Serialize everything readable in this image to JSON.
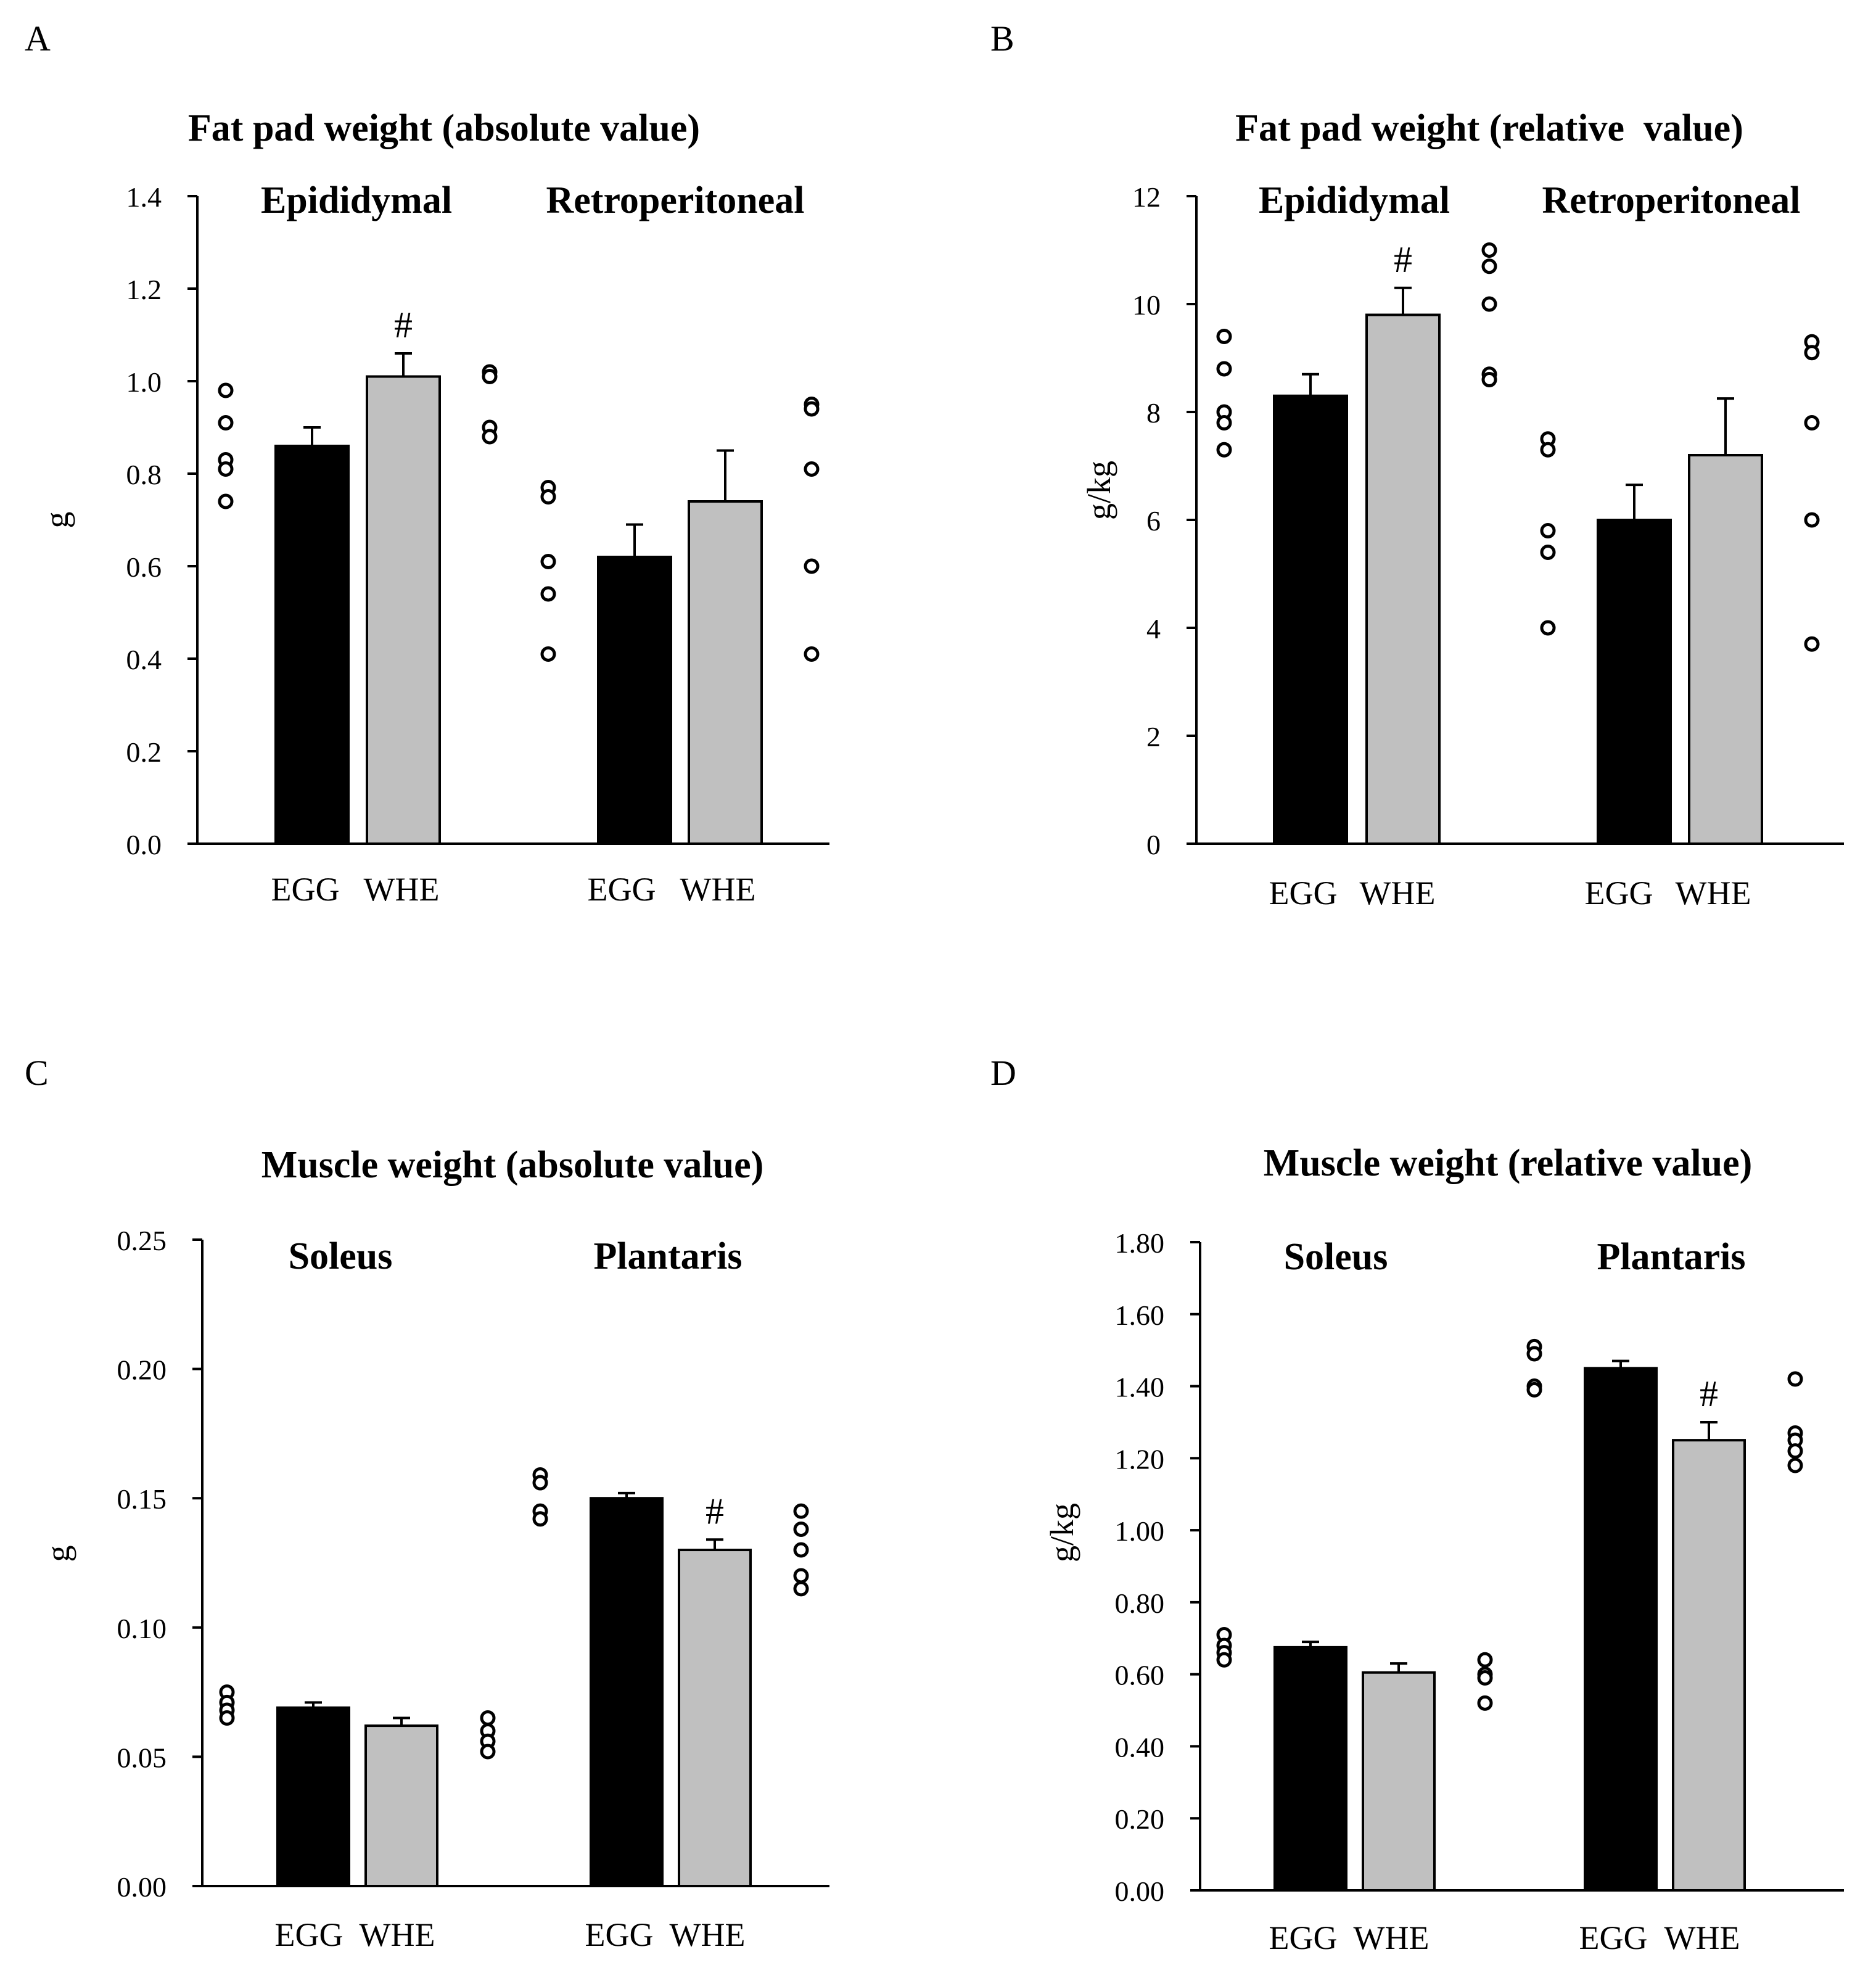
{
  "figure": {
    "colors": {
      "egg": "#000000",
      "whe": "#c0c0c0",
      "axis": "#000000",
      "background": "#ffffff"
    }
  },
  "chart_data": [
    {
      "id": "A",
      "panel_label": "A",
      "type": "bar",
      "title": "Fat pad weight (absolute value)",
      "ylabel": "g",
      "ylim": [
        0,
        1.4
      ],
      "yticks": [
        "0.0",
        "0.2",
        "0.4",
        "0.6",
        "0.8",
        "1.0",
        "1.2",
        "1.4"
      ],
      "groups": [
        {
          "name": "Epididymal",
          "bars": [
            {
              "category": "EGG",
              "color": "#000000",
              "value": 0.86,
              "error": 0.04,
              "significance": "",
              "points": [
                0.98,
                0.91,
                0.83,
                0.81,
                0.74
              ]
            },
            {
              "category": "WHE",
              "color": "#c0c0c0",
              "value": 1.01,
              "error": 0.05,
              "significance": "#",
              "points": [
                1.02,
                1.01,
                0.9,
                0.88
              ]
            }
          ]
        },
        {
          "name": "Retroperitoneal",
          "bars": [
            {
              "category": "EGG",
              "color": "#000000",
              "value": 0.62,
              "error": 0.07,
              "significance": "",
              "points": [
                0.77,
                0.75,
                0.61,
                0.54,
                0.41
              ]
            },
            {
              "category": "WHE",
              "color": "#c0c0c0",
              "value": 0.74,
              "error": 0.11,
              "significance": "",
              "points": [
                0.95,
                0.94,
                0.81,
                0.6,
                0.41
              ]
            }
          ]
        }
      ]
    },
    {
      "id": "B",
      "panel_label": "B",
      "type": "bar",
      "title": "Fat pad weight (relative  value)",
      "ylabel": "g/kg",
      "ylim": [
        0,
        12
      ],
      "yticks": [
        "0",
        "2",
        "4",
        "6",
        "8",
        "10",
        "12"
      ],
      "groups": [
        {
          "name": "Epididymal",
          "bars": [
            {
              "category": "EGG",
              "color": "#000000",
              "value": 8.3,
              "error": 0.4,
              "significance": "",
              "points": [
                9.4,
                8.8,
                8.0,
                7.8,
                7.3
              ]
            },
            {
              "category": "WHE",
              "color": "#c0c0c0",
              "value": 9.8,
              "error": 0.5,
              "significance": "#",
              "points": [
                11.0,
                10.7,
                10.0,
                8.7,
                8.6
              ]
            }
          ]
        },
        {
          "name": "Retroperitoneal",
          "bars": [
            {
              "category": "EGG",
              "color": "#000000",
              "value": 6.0,
              "error": 0.65,
              "significance": "",
              "points": [
                7.5,
                7.3,
                5.8,
                5.4,
                4.0
              ]
            },
            {
              "category": "WHE",
              "color": "#c0c0c0",
              "value": 7.2,
              "error": 1.05,
              "significance": "",
              "points": [
                9.3,
                9.1,
                7.8,
                6.0,
                3.7
              ]
            }
          ]
        }
      ]
    },
    {
      "id": "C",
      "panel_label": "C",
      "type": "bar",
      "title": "Muscle weight (absolute value)",
      "ylabel": "g",
      "ylim": [
        0,
        0.25
      ],
      "yticks": [
        "0.00",
        "0.05",
        "0.10",
        "0.15",
        "0.20",
        "0.25"
      ],
      "groups": [
        {
          "name": "Soleus",
          "bars": [
            {
              "category": "EGG",
              "color": "#000000",
              "value": 0.069,
              "error": 0.002,
              "significance": "",
              "points": [
                0.075,
                0.071,
                0.068,
                0.065
              ]
            },
            {
              "category": "WHE",
              "color": "#c0c0c0",
              "value": 0.062,
              "error": 0.003,
              "significance": "",
              "points": [
                0.065,
                0.06,
                0.056,
                0.052
              ]
            }
          ]
        },
        {
          "name": "Plantaris",
          "bars": [
            {
              "category": "EGG",
              "color": "#000000",
              "value": 0.15,
              "error": 0.002,
              "significance": "",
              "points": [
                0.159,
                0.156,
                0.145,
                0.142
              ]
            },
            {
              "category": "WHE",
              "color": "#c0c0c0",
              "value": 0.13,
              "error": 0.004,
              "significance": "#",
              "points": [
                0.145,
                0.138,
                0.13,
                0.12,
                0.115
              ]
            }
          ]
        }
      ]
    },
    {
      "id": "D",
      "panel_label": "D",
      "type": "bar",
      "title": "Muscle weight (relative value)",
      "ylabel": "g/kg",
      "ylim": [
        0,
        1.8
      ],
      "yticks": [
        "0.00",
        "0.20",
        "0.40",
        "0.60",
        "0.80",
        "1.00",
        "1.20",
        "1.40",
        "1.60",
        "1.80"
      ],
      "groups": [
        {
          "name": "Soleus",
          "bars": [
            {
              "category": "EGG",
              "color": "#000000",
              "value": 0.675,
              "error": 0.015,
              "significance": "",
              "points": [
                0.71,
                0.68,
                0.66,
                0.64
              ]
            },
            {
              "category": "WHE",
              "color": "#c0c0c0",
              "value": 0.605,
              "error": 0.025,
              "significance": "",
              "points": [
                0.64,
                0.6,
                0.59,
                0.52
              ]
            }
          ]
        },
        {
          "name": "Plantaris",
          "bars": [
            {
              "category": "EGG",
              "color": "#000000",
              "value": 1.45,
              "error": 0.02,
              "significance": "",
              "points": [
                1.51,
                1.49,
                1.4,
                1.39
              ]
            },
            {
              "category": "WHE",
              "color": "#c0c0c0",
              "value": 1.25,
              "error": 0.05,
              "significance": "#",
              "points": [
                1.42,
                1.27,
                1.25,
                1.22,
                1.18
              ]
            }
          ]
        }
      ]
    }
  ]
}
